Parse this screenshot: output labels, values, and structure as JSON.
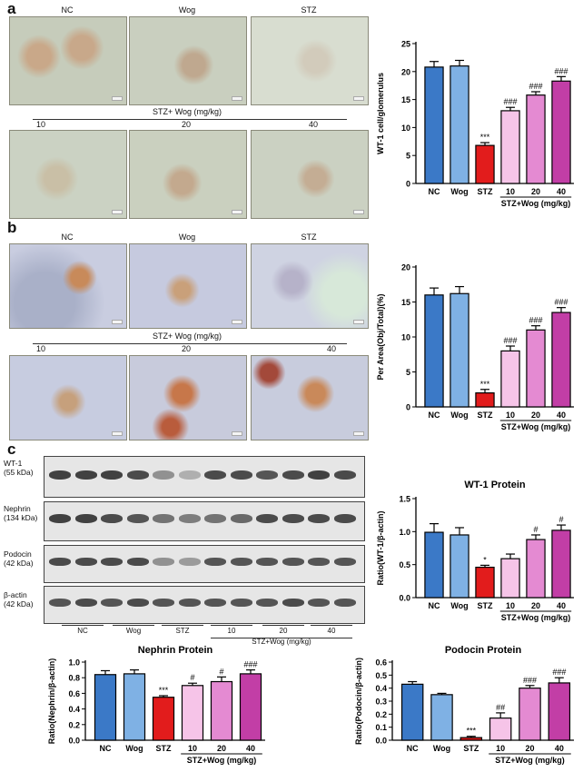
{
  "panel_letters": {
    "a": "a",
    "b": "b",
    "c": "c"
  },
  "panel_a": {
    "top_labels": [
      "NC",
      "Wog",
      "STZ"
    ],
    "dose_title": "STZ+ Wog (mg/kg)",
    "dose_labels": [
      "10",
      "20",
      "40"
    ]
  },
  "panel_b": {
    "top_labels": [
      "NC",
      "Wog",
      "STZ"
    ],
    "dose_title": "STZ+ Wog (mg/kg)",
    "dose_labels": [
      "10",
      "20",
      "40"
    ]
  },
  "panel_c": {
    "blot_labels": [
      {
        "name": "WT-1",
        "size": "(55 kDa)"
      },
      {
        "name": "Nephrin",
        "size": "(134 kDa)"
      },
      {
        "name": "Podocin",
        "size": "(42 kDa)"
      },
      {
        "name": "β-actin",
        "size": "(42 kDa)"
      }
    ],
    "lane_groups": [
      "NC",
      "Wog",
      "STZ",
      "10",
      "20",
      "40"
    ],
    "lane_title": "STZ+Wog (mg/kg)"
  },
  "chart_data": [
    {
      "id": "wt1-cells",
      "type": "bar",
      "title": "",
      "ylabel": "WT-1 cell/glomerulus",
      "ylim": [
        0,
        25
      ],
      "yticks": [
        0,
        5,
        10,
        15,
        20,
        25
      ],
      "categories": [
        "NC",
        "Wog",
        "STZ",
        "10",
        "20",
        "40"
      ],
      "values": [
        20.8,
        21.0,
        6.8,
        13.0,
        15.8,
        18.3
      ],
      "errors": [
        1.0,
        1.0,
        0.5,
        0.6,
        0.6,
        0.8
      ],
      "annotations": [
        "",
        "",
        "***",
        "###",
        "###",
        "###"
      ],
      "group_label": "STZ+Wog (mg/kg)",
      "colors": [
        "#3b79c7",
        "#7fb1e4",
        "#e21c1c",
        "#f6c4e8",
        "#e48ad2",
        "#c23ea6"
      ]
    },
    {
      "id": "per-area",
      "type": "bar",
      "title": "",
      "ylabel": "Per Area(Obj/Total)(%)",
      "ylim": [
        0,
        20
      ],
      "yticks": [
        0,
        5,
        10,
        15,
        20
      ],
      "categories": [
        "NC",
        "Wog",
        "STZ",
        "10",
        "20",
        "40"
      ],
      "values": [
        16.0,
        16.2,
        2.0,
        8.0,
        11.0,
        13.5
      ],
      "errors": [
        1.0,
        1.0,
        0.5,
        0.7,
        0.6,
        0.7
      ],
      "annotations": [
        "",
        "",
        "***",
        "###",
        "###",
        "###"
      ],
      "group_label": "STZ+Wog (mg/kg)",
      "colors": [
        "#3b79c7",
        "#7fb1e4",
        "#e21c1c",
        "#f6c4e8",
        "#e48ad2",
        "#c23ea6"
      ]
    },
    {
      "id": "wt1-protein",
      "type": "bar",
      "title": "WT-1 Protein",
      "ylabel": "Ratio(WT-1/β-actin)",
      "ylim": [
        0,
        1.5
      ],
      "yticks": [
        "0.0",
        "0.5",
        "1.0",
        "1.5"
      ],
      "categories": [
        "NC",
        "Wog",
        "STZ",
        "10",
        "20",
        "40"
      ],
      "values": [
        0.99,
        0.95,
        0.46,
        0.59,
        0.88,
        1.02
      ],
      "errors": [
        0.13,
        0.11,
        0.03,
        0.07,
        0.07,
        0.08
      ],
      "annotations": [
        "",
        "",
        "*",
        "",
        "#",
        "#"
      ],
      "group_label": "STZ+Wog (mg/kg)",
      "colors": [
        "#3b79c7",
        "#7fb1e4",
        "#e21c1c",
        "#f6c4e8",
        "#e48ad2",
        "#c23ea6"
      ]
    },
    {
      "id": "nephrin-protein",
      "type": "bar",
      "title": "Nephrin Protein",
      "ylabel": "Ratio(Nephrin/β-actin)",
      "ylim": [
        0,
        1.0
      ],
      "yticks": [
        "0.0",
        "0.2",
        "0.4",
        "0.6",
        "0.8",
        "1.0"
      ],
      "categories": [
        "NC",
        "Wog",
        "STZ",
        "10",
        "20",
        "40"
      ],
      "values": [
        0.84,
        0.85,
        0.55,
        0.7,
        0.75,
        0.85
      ],
      "errors": [
        0.05,
        0.05,
        0.02,
        0.03,
        0.06,
        0.05
      ],
      "annotations": [
        "",
        "",
        "***",
        "#",
        "#",
        "###"
      ],
      "group_label": "STZ+Wog (mg/kg)",
      "colors": [
        "#3b79c7",
        "#7fb1e4",
        "#e21c1c",
        "#f6c4e8",
        "#e48ad2",
        "#c23ea6"
      ]
    },
    {
      "id": "podocin-protein",
      "type": "bar",
      "title": "Podocin Protein",
      "ylabel": "Ratio(Podocin/β-actin)",
      "ylim": [
        0,
        0.6
      ],
      "yticks": [
        "0.0",
        "0.1",
        "0.2",
        "0.3",
        "0.4",
        "0.5",
        "0.6"
      ],
      "categories": [
        "NC",
        "Wog",
        "STZ",
        "10",
        "20",
        "40"
      ],
      "values": [
        0.43,
        0.35,
        0.02,
        0.17,
        0.4,
        0.44
      ],
      "errors": [
        0.02,
        0.01,
        0.01,
        0.04,
        0.02,
        0.04
      ],
      "annotations": [
        "",
        "",
        "***",
        "##",
        "###",
        "###"
      ],
      "group_label": "STZ+Wog (mg/kg)",
      "colors": [
        "#3b79c7",
        "#7fb1e4",
        "#e21c1c",
        "#f6c4e8",
        "#e48ad2",
        "#c23ea6"
      ]
    }
  ]
}
